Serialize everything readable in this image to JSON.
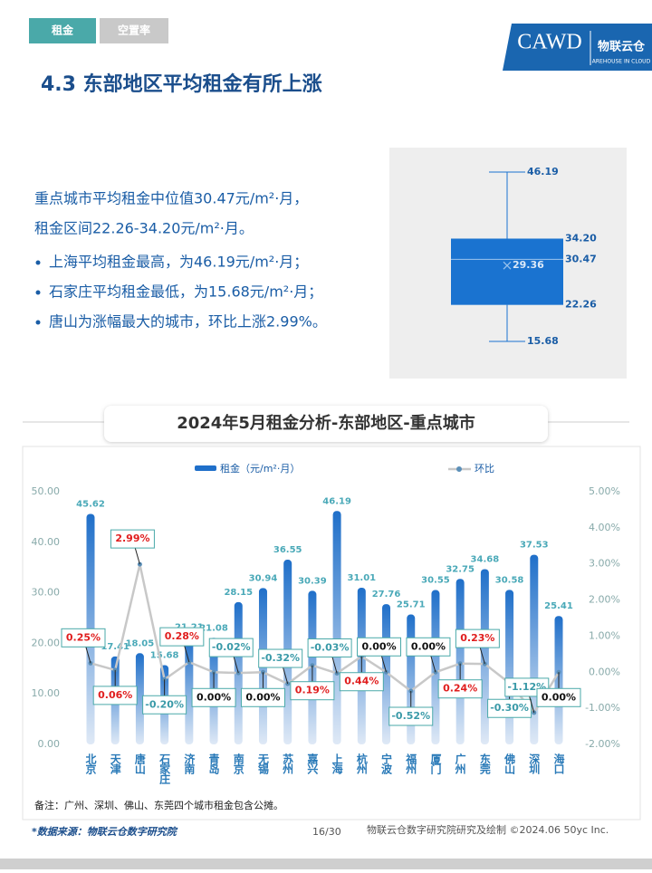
{
  "tabs": [
    "租金",
    "空置率"
  ],
  "logo": {
    "text": "CAWD",
    "brand": "物联云仓",
    "sub": "AREHOUSE IN CLOUD"
  },
  "heading": "4.3 东部地区平均租金有所上涨",
  "summary": {
    "lines": [
      "重点城市平均租金中位值30.47元/m²·月，",
      "租金区间22.26-34.20元/m²·月。"
    ],
    "bullets": [
      "上海平均租金最高，为46.19元/m²·月；",
      "石家庄平均租金最低，为15.68元/m²·月；",
      "唐山为涨幅最大的城市，环比上涨2.99%。"
    ]
  },
  "chart_data": [
    {
      "type": "box",
      "color": "#1a73d0",
      "values": [
        15.68,
        22.26,
        30.47,
        34.2,
        46.19
      ],
      "value_labels": [
        "15.68",
        "22.26",
        "30.47",
        "34.20",
        "46.19"
      ],
      "mean": 29.36
    },
    {
      "type": "bar",
      "title": "2024年5月租金分析-东部地区-重点城市",
      "categories": [
        "北京",
        "天津",
        "唐山",
        "石家庄",
        "济南",
        "青岛",
        "南京",
        "无锡",
        "苏州",
        "嘉兴",
        "上海",
        "杭州",
        "宁波",
        "福州",
        "厦门",
        "广州",
        "东莞",
        "佛山",
        "深圳",
        "海口"
      ],
      "series": [
        {
          "name": "租金（元/m²·月）",
          "color": "#1f6fc9",
          "values": [
            45.62,
            17.41,
            18.05,
            15.68,
            21.21,
            21.08,
            28.15,
            30.94,
            36.55,
            30.39,
            46.19,
            31.01,
            27.76,
            25.71,
            30.55,
            32.75,
            34.68,
            30.58,
            37.53,
            25.41
          ]
        },
        {
          "name": "环比",
          "color": "#c8c8c8",
          "axis": "y2",
          "values": [
            0.25,
            0.06,
            2.99,
            -0.2,
            0.28,
            0.0,
            -0.02,
            0.0,
            -0.32,
            0.19,
            -0.03,
            0.44,
            0.0,
            -0.52,
            0.0,
            0.24,
            0.23,
            -0.3,
            -1.12,
            0.0
          ],
          "value_labels": [
            "0.25%",
            "0.06%",
            "2.99%",
            "-0.20%",
            "0.28%",
            "0.00%",
            "-0.02%",
            "0.00%",
            "-0.32%",
            "0.19%",
            "-0.03%",
            "0.44%",
            "0.00%",
            "-0.52%",
            "0.00%",
            "0.24%",
            "0.23%",
            "-0.30%",
            "-1.12%",
            "0.00%"
          ]
        }
      ],
      "ylim": [
        0,
        50
      ],
      "yticks": [
        {
          "value": 0,
          "label": "0.00"
        },
        {
          "value": 10,
          "label": "10.00"
        },
        {
          "value": 20,
          "label": "20.00"
        },
        {
          "value": 30,
          "label": "30.00"
        },
        {
          "value": 40,
          "label": "40.00"
        },
        {
          "value": 50,
          "label": "50.00"
        }
      ],
      "y2lim": [
        -2,
        5
      ],
      "y2ticks": [
        {
          "value": -2,
          "label": "-2.00%"
        },
        {
          "value": -1,
          "label": "-1.00%"
        },
        {
          "value": 0,
          "label": "0.00%"
        },
        {
          "value": 1,
          "label": "1.00%"
        },
        {
          "value": 2,
          "label": "2.00%"
        },
        {
          "value": 3,
          "label": "3.00%"
        },
        {
          "value": 4,
          "label": "4.00%"
        },
        {
          "value": 5,
          "label": "5.00%"
        }
      ],
      "legend": "top"
    }
  ],
  "footnote": "备注：广州、深圳、佛山、东莞四个城市租金包含公摊。",
  "footer": {
    "source": "*数据来源：物联云仓数字研究院",
    "page": "16/30",
    "credit": "物联云仓数字研究院研究及绘制  ©2024.06 50yc Inc."
  }
}
